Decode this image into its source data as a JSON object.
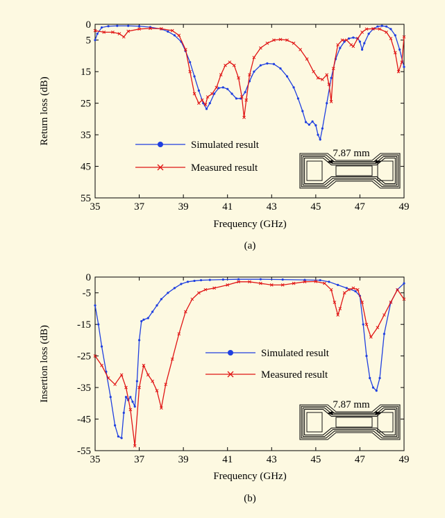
{
  "colors": {
    "background": "#fdf9e1",
    "simulated": "#1f3fe0",
    "measured": "#e01414",
    "axis": "#000000"
  },
  "chart_data": [
    {
      "type": "line",
      "caption": "(a)",
      "xlabel": "Frequency (GHz)",
      "ylabel": "Return loss (dB)",
      "xlim": [
        35,
        49
      ],
      "ylim": [
        0,
        55
      ],
      "y_inverted": true,
      "xticks": [
        35,
        37,
        39,
        41,
        43,
        45,
        47,
        49
      ],
      "yticks": [
        0,
        5,
        15,
        25,
        35,
        45,
        55
      ],
      "grid": false,
      "legend_position": "lower-left",
      "inset_label": "7.87 mm",
      "series": [
        {
          "name": "Simulated result",
          "marker": "circle",
          "color": "#1f3fe0",
          "x": [
            35,
            35.1,
            35.3,
            35.6,
            36,
            36.5,
            37,
            37.5,
            38,
            38.3,
            38.6,
            38.9,
            39.1,
            39.3,
            39.5,
            39.7,
            39.9,
            40.05,
            40.2,
            40.4,
            40.6,
            40.8,
            41.0,
            41.2,
            41.4,
            41.6,
            41.8,
            42.0,
            42.2,
            42.5,
            42.8,
            43.1,
            43.4,
            43.7,
            44.0,
            44.2,
            44.4,
            44.55,
            44.7,
            44.85,
            45.0,
            45.1,
            45.2,
            45.3,
            45.5,
            45.7,
            45.9,
            46.1,
            46.3,
            46.5,
            46.7,
            46.9,
            47.0,
            47.1,
            47.2,
            47.4,
            47.6,
            47.8,
            48.0,
            48.2,
            48.4,
            48.6,
            48.8,
            49.0
          ],
          "y": [
            5,
            3,
            1,
            0.6,
            0.5,
            0.5,
            0.6,
            0.9,
            1.5,
            2.3,
            3.5,
            5.5,
            8.5,
            12,
            16.5,
            21,
            25,
            26.8,
            25,
            22,
            20.2,
            20,
            20.5,
            22,
            23.5,
            23.5,
            21.5,
            18,
            15,
            13,
            12.4,
            12.6,
            14,
            16.5,
            20,
            23.5,
            27.5,
            31,
            31.8,
            30.8,
            32,
            35,
            36.5,
            33,
            25,
            17,
            11,
            7.5,
            5.5,
            4.5,
            4.2,
            4.5,
            5.5,
            8,
            6,
            3,
            1.5,
            0.7,
            0.5,
            0.7,
            1.5,
            3.5,
            8,
            13.5
          ]
        },
        {
          "name": "Measured result",
          "marker": "x",
          "color": "#e01414",
          "x": [
            35,
            35.4,
            35.8,
            36.1,
            36.3,
            36.5,
            37,
            37.5,
            38,
            38.5,
            38.8,
            39.1,
            39.3,
            39.5,
            39.7,
            39.85,
            40.0,
            40.1,
            40.3,
            40.5,
            40.7,
            40.9,
            41.1,
            41.3,
            41.5,
            41.65,
            41.75,
            41.85,
            42.0,
            42.2,
            42.5,
            42.8,
            43.1,
            43.4,
            43.7,
            44.0,
            44.3,
            44.6,
            44.9,
            45.1,
            45.3,
            45.5,
            45.6,
            45.7,
            45.8,
            46.0,
            46.2,
            46.4,
            46.6,
            46.7,
            46.9,
            47.1,
            47.3,
            47.6,
            47.9,
            48.2,
            48.4,
            48.6,
            48.75,
            48.9,
            49.0
          ],
          "y": [
            2,
            2.5,
            2.5,
            3,
            4,
            2.2,
            1.5,
            1.3,
            1.4,
            2,
            3.5,
            8,
            15,
            22,
            25,
            24,
            25.5,
            23,
            22,
            20,
            16,
            13,
            12,
            13,
            17,
            23,
            29.5,
            24,
            16,
            10.5,
            7.5,
            6,
            5,
            4.8,
            5,
            6,
            8,
            11,
            15,
            17,
            17.5,
            16,
            19,
            24.5,
            14,
            6.5,
            5,
            5,
            6.5,
            7,
            4.5,
            2.5,
            1.5,
            1.4,
            1.5,
            2.5,
            4.5,
            9,
            15,
            12,
            4
          ]
        }
      ]
    },
    {
      "type": "line",
      "caption": "(b)",
      "xlabel": "Frequency (GHz)",
      "ylabel": "Insertion loss (dB)",
      "xlim": [
        35,
        49
      ],
      "ylim": [
        -55,
        0
      ],
      "y_inverted": false,
      "xticks": [
        35,
        37,
        39,
        41,
        43,
        45,
        47,
        49
      ],
      "yticks": [
        0,
        -5,
        -15,
        -25,
        -35,
        -45,
        -55
      ],
      "ytick_labels": [
        "0",
        "-5",
        "-15",
        "-25",
        "-35",
        "-45",
        "-55"
      ],
      "grid": false,
      "legend_position": "center-right",
      "inset_label": "7.87 mm",
      "series": [
        {
          "name": "Simulated result",
          "marker": "circle",
          "color": "#1f3fe0",
          "x": [
            35,
            35.15,
            35.3,
            35.5,
            35.7,
            35.9,
            36.05,
            36.2,
            36.3,
            36.4,
            36.5,
            36.6,
            36.7,
            36.8,
            36.9,
            37.0,
            37.1,
            37.2,
            37.4,
            37.6,
            37.8,
            38.0,
            38.3,
            38.6,
            38.9,
            39.2,
            39.5,
            39.8,
            40.2,
            40.8,
            41.5,
            42.5,
            43.5,
            44.5,
            45.2,
            45.6,
            46.0,
            46.4,
            46.8,
            47.0,
            47.15,
            47.3,
            47.45,
            47.6,
            47.75,
            47.9,
            48.1,
            48.4,
            48.7,
            49.0
          ],
          "y": [
            -9,
            -15,
            -22,
            -30,
            -38,
            -47,
            -50.5,
            -51,
            -43,
            -38,
            -39,
            -38,
            -39.5,
            -41,
            -33,
            -20,
            -14,
            -13.5,
            -13,
            -11,
            -9,
            -7,
            -5,
            -3.5,
            -2.2,
            -1.5,
            -1.2,
            -1,
            -0.9,
            -0.8,
            -0.7,
            -0.7,
            -0.8,
            -0.9,
            -1,
            -1.5,
            -2.5,
            -3.5,
            -4.5,
            -6,
            -15,
            -25,
            -32,
            -35,
            -36,
            -32,
            -18,
            -8,
            -4,
            -2
          ]
        },
        {
          "name": "Measured result",
          "marker": "x",
          "color": "#e01414",
          "x": [
            35,
            35.3,
            35.6,
            35.9,
            36.2,
            36.4,
            36.6,
            36.8,
            37.0,
            37.2,
            37.4,
            37.6,
            37.8,
            38.0,
            38.2,
            38.5,
            38.8,
            39.1,
            39.4,
            39.7,
            40.0,
            40.4,
            41.0,
            41.5,
            42.0,
            42.5,
            43.0,
            43.5,
            44.0,
            44.5,
            45.0,
            45.4,
            45.7,
            45.85,
            46.0,
            46.1,
            46.3,
            46.5,
            46.7,
            46.9,
            47.1,
            47.3,
            47.5,
            47.8,
            48.1,
            48.4,
            48.7,
            49.0
          ],
          "y": [
            -25,
            -28,
            -32,
            -34,
            -31,
            -35,
            -42,
            -53.5,
            -35,
            -28,
            -31,
            -33,
            -36,
            -41.5,
            -34,
            -26,
            -18,
            -11,
            -7,
            -5,
            -4,
            -3.5,
            -2.5,
            -1.5,
            -1.5,
            -2,
            -2.5,
            -2.5,
            -2,
            -1.5,
            -1.4,
            -2,
            -4,
            -8,
            -12,
            -10,
            -5,
            -4,
            -3.5,
            -4,
            -8,
            -15,
            -19,
            -16,
            -12,
            -8,
            -4,
            -7
          ]
        }
      ]
    }
  ]
}
